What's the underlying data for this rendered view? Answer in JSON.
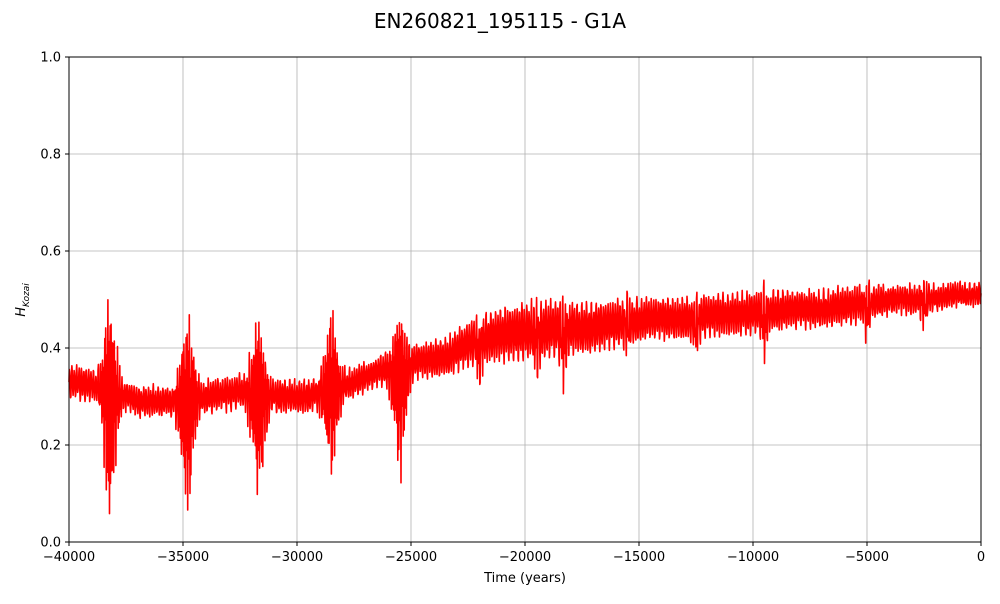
{
  "chart_data": {
    "type": "line",
    "title": "EN260821_195115 - G1A",
    "xlabel": "Time (years)",
    "ylabel_main": "H",
    "ylabel_sub": "Kozai",
    "xlim": [
      -40000,
      0
    ],
    "ylim": [
      0.0,
      1.0
    ],
    "xticks": [
      -40000,
      -35000,
      -30000,
      -25000,
      -20000,
      -15000,
      -10000,
      -5000,
      0
    ],
    "xtick_labels": [
      "−40000",
      "−35000",
      "−30000",
      "−25000",
      "−20000",
      "−15000",
      "−10000",
      "−5000",
      "0"
    ],
    "yticks": [
      0.0,
      0.2,
      0.4,
      0.6,
      0.8,
      1.0
    ],
    "ytick_labels": [
      "0.0",
      "0.2",
      "0.4",
      "0.6",
      "0.8",
      "1.0"
    ],
    "grid": true,
    "series": [
      {
        "color": "#ff0000",
        "trend": {
          "x": [
            -40000,
            -38500,
            -37000,
            -35500,
            -34000,
            -32500,
            -31000,
            -29500,
            -28000,
            -26500,
            -25000,
            -23500,
            -22000,
            -20500,
            -19000,
            -17500,
            -16000,
            -14500,
            -13000,
            -11500,
            -10000,
            -8500,
            -7000,
            -5500,
            -4000,
            -2500,
            -1000,
            0
          ],
          "center": [
            0.33,
            0.32,
            0.29,
            0.29,
            0.3,
            0.31,
            0.3,
            0.3,
            0.32,
            0.35,
            0.37,
            0.38,
            0.42,
            0.43,
            0.44,
            0.44,
            0.45,
            0.46,
            0.46,
            0.47,
            0.47,
            0.48,
            0.48,
            0.49,
            0.5,
            0.5,
            0.51,
            0.51
          ],
          "amplitude": [
            0.035,
            0.035,
            0.033,
            0.032,
            0.035,
            0.035,
            0.035,
            0.035,
            0.03,
            0.03,
            0.035,
            0.04,
            0.05,
            0.06,
            0.06,
            0.055,
            0.05,
            0.045,
            0.045,
            0.045,
            0.045,
            0.04,
            0.04,
            0.04,
            0.03,
            0.03,
            0.025,
            0.025
          ]
        },
        "bursts": [
          {
            "x": -38200,
            "min": 0.02,
            "max": 0.51
          },
          {
            "x": -34800,
            "min": 0.02,
            "max": 0.5
          },
          {
            "x": -31700,
            "min": 0.06,
            "max": 0.5
          },
          {
            "x": -28500,
            "min": 0.12,
            "max": 0.49
          },
          {
            "x": -25500,
            "min": 0.1,
            "max": 0.48
          }
        ],
        "spikes": [
          {
            "x": -22000,
            "min": 0.27,
            "max": 0.47
          },
          {
            "x": -19500,
            "min": 0.28,
            "max": 0.53
          },
          {
            "x": -18300,
            "min": 0.26,
            "max": 0.53
          },
          {
            "x": -15500,
            "min": 0.35,
            "max": 0.54
          },
          {
            "x": -12500,
            "min": 0.34,
            "max": 0.52
          },
          {
            "x": -9500,
            "min": 0.34,
            "max": 0.55
          },
          {
            "x": -5000,
            "min": 0.38,
            "max": 0.55
          },
          {
            "x": -2500,
            "min": 0.41,
            "max": 0.56
          }
        ]
      }
    ]
  }
}
